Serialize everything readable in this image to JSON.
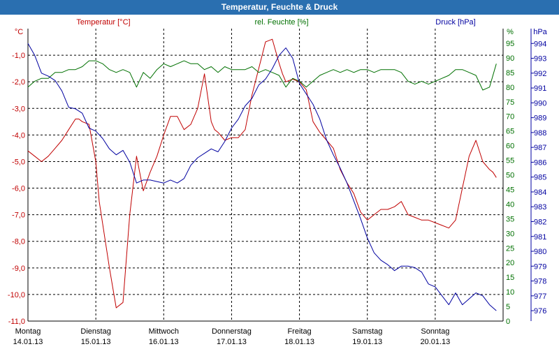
{
  "window": {
    "title": "Temperatur, Feuchte & Druck"
  },
  "legend": {
    "temperature": "Temperatur [°C]",
    "humidity": "rel. Feuchte [%]",
    "pressure": "Druck [hPa]"
  },
  "axes": {
    "left_unit": "°C",
    "right1_unit": "%",
    "right2_unit": "hPa",
    "left_ticks": [
      "-1,0",
      "-2,0",
      "-3,0",
      "-4,0",
      "-5,0",
      "-6,0",
      "-7,0",
      "-8,0",
      "-9,0",
      "-10,0",
      "-11,0"
    ],
    "hum_ticks": [
      "95",
      "90",
      "85",
      "80",
      "75",
      "70",
      "65",
      "60",
      "55",
      "50",
      "45",
      "40",
      "35",
      "30",
      "25",
      "20",
      "15",
      "10",
      "5",
      "0"
    ],
    "pres_ticks": [
      "994",
      "993",
      "992",
      "991",
      "990",
      "989",
      "988",
      "987",
      "986",
      "985",
      "984",
      "983",
      "982",
      "981",
      "980",
      "979",
      "978",
      "977",
      "976"
    ],
    "day_labels": [
      {
        "day": "Montag",
        "date": "14.01.13"
      },
      {
        "day": "Dienstag",
        "date": "15.01.13"
      },
      {
        "day": "Mittwoch",
        "date": "16.01.13"
      },
      {
        "day": "Donnerstag",
        "date": "17.01.13"
      },
      {
        "day": "Freitag",
        "date": "18.01.13"
      },
      {
        "day": "Samstag",
        "date": "19.01.13"
      },
      {
        "day": "Sonntag",
        "date": "20.01.13"
      }
    ]
  },
  "colors": {
    "temperature": "#c00000",
    "humidity": "#007000",
    "pressure": "#0000a0",
    "grid": "#000000",
    "title_bg": "#2a6fb0"
  },
  "chart_data": {
    "type": "line",
    "title": "Temperatur, Feuchte & Druck",
    "x_unit": "days since 14.01.13 00:00",
    "xlim": [
      0,
      7
    ],
    "grid": true,
    "series": [
      {
        "name": "Temperatur [°C]",
        "axis": "left",
        "ylim": [
          -11.0,
          0.0
        ],
        "x": [
          0,
          0.1,
          0.2,
          0.3,
          0.4,
          0.5,
          0.6,
          0.7,
          0.75,
          0.8,
          0.9,
          1.0,
          1.05,
          1.2,
          1.3,
          1.4,
          1.5,
          1.6,
          1.7,
          1.8,
          1.9,
          2.0,
          2.1,
          2.2,
          2.3,
          2.4,
          2.5,
          2.6,
          2.7,
          2.75,
          2.8,
          2.9,
          3.0,
          3.1,
          3.2,
          3.3,
          3.4,
          3.5,
          3.6,
          3.7,
          3.75,
          3.8,
          3.9,
          4.0,
          4.1,
          4.2,
          4.3,
          4.4,
          4.5,
          4.6,
          4.7,
          4.8,
          4.9,
          5.0,
          5.1,
          5.2,
          5.3,
          5.4,
          5.5,
          5.6,
          5.7,
          5.8,
          5.9,
          6.0,
          6.1,
          6.2,
          6.3,
          6.4,
          6.5,
          6.6,
          6.7,
          6.8,
          6.85,
          6.9
        ],
        "values": [
          -4.6,
          -4.8,
          -5.0,
          -4.8,
          -4.5,
          -4.2,
          -3.8,
          -3.4,
          -3.4,
          -3.5,
          -3.6,
          -5.0,
          -6.5,
          -9.0,
          -10.5,
          -10.3,
          -7.0,
          -4.8,
          -6.1,
          -5.4,
          -4.8,
          -4.0,
          -3.3,
          -3.3,
          -3.8,
          -3.6,
          -3.0,
          -1.7,
          -3.5,
          -3.8,
          -3.9,
          -4.2,
          -4.1,
          -4.1,
          -3.8,
          -2.5,
          -1.5,
          -0.5,
          -0.4,
          -1.3,
          -1.7,
          -2.0,
          -1.9,
          -2.0,
          -2.3,
          -3.5,
          -3.9,
          -4.2,
          -4.5,
          -5.3,
          -5.8,
          -6.2,
          -6.9,
          -7.2,
          -7.0,
          -6.8,
          -6.8,
          -6.7,
          -6.5,
          -7.0,
          -7.1,
          -7.2,
          -7.2,
          -7.3,
          -7.4,
          -7.5,
          -7.2,
          -6.0,
          -4.8,
          -4.2,
          -5.0,
          -5.3,
          -5.4,
          -5.6
        ]
      },
      {
        "name": "rel. Feuchte [%]",
        "axis": "right1",
        "ylim": [
          0,
          100
        ],
        "x": [
          0,
          0.1,
          0.2,
          0.3,
          0.4,
          0.5,
          0.6,
          0.7,
          0.8,
          0.9,
          1.0,
          1.1,
          1.2,
          1.3,
          1.4,
          1.5,
          1.6,
          1.7,
          1.8,
          1.9,
          2.0,
          2.1,
          2.2,
          2.3,
          2.4,
          2.5,
          2.6,
          2.7,
          2.8,
          2.9,
          3.0,
          3.1,
          3.2,
          3.3,
          3.4,
          3.5,
          3.6,
          3.7,
          3.8,
          3.9,
          4.0,
          4.1,
          4.2,
          4.3,
          4.4,
          4.5,
          4.6,
          4.7,
          4.8,
          4.9,
          5.0,
          5.1,
          5.2,
          5.3,
          5.4,
          5.5,
          5.6,
          5.7,
          5.8,
          5.9,
          6.0,
          6.1,
          6.2,
          6.3,
          6.4,
          6.5,
          6.6,
          6.7,
          6.8,
          6.9
        ],
        "values": [
          80,
          82,
          83,
          83,
          85,
          85,
          86,
          86,
          87,
          89,
          89,
          88,
          86,
          85,
          86,
          85,
          80,
          85,
          83,
          86,
          88,
          87,
          88,
          89,
          88,
          88,
          86,
          87,
          85,
          87,
          86,
          86,
          86,
          87,
          85,
          86,
          85,
          84,
          80,
          83,
          82,
          80,
          82,
          84,
          85,
          86,
          85,
          86,
          85,
          86,
          86,
          85,
          86,
          86,
          86,
          85,
          82,
          81,
          82,
          81,
          82,
          83,
          84,
          86,
          86,
          85,
          84,
          79,
          80,
          88
        ]
      },
      {
        "name": "Druck [hPa]",
        "axis": "right2",
        "ylim": [
          975.3,
          995.0
        ],
        "x": [
          0,
          0.1,
          0.2,
          0.3,
          0.4,
          0.5,
          0.6,
          0.7,
          0.8,
          0.9,
          1.0,
          1.1,
          1.2,
          1.3,
          1.4,
          1.5,
          1.6,
          1.7,
          1.8,
          1.9,
          2.0,
          2.1,
          2.2,
          2.3,
          2.4,
          2.5,
          2.6,
          2.7,
          2.8,
          2.9,
          3.0,
          3.1,
          3.2,
          3.3,
          3.4,
          3.5,
          3.6,
          3.7,
          3.8,
          3.9,
          4.0,
          4.1,
          4.2,
          4.3,
          4.4,
          4.5,
          4.6,
          4.7,
          4.8,
          4.9,
          5.0,
          5.1,
          5.2,
          5.3,
          5.4,
          5.5,
          5.6,
          5.7,
          5.8,
          5.9,
          6.0,
          6.1,
          6.2,
          6.3,
          6.4,
          6.5,
          6.6,
          6.7,
          6.8,
          6.9
        ],
        "values": [
          994.0,
          993.2,
          992.0,
          991.8,
          991.5,
          990.8,
          989.7,
          989.6,
          989.3,
          988.3,
          988.1,
          987.6,
          986.9,
          986.5,
          986.8,
          986.0,
          984.6,
          984.8,
          984.8,
          984.7,
          984.6,
          984.8,
          984.6,
          984.9,
          985.8,
          986.3,
          986.6,
          986.9,
          986.7,
          987.4,
          988.3,
          988.9,
          989.8,
          990.3,
          991.2,
          991.6,
          992.3,
          993.2,
          993.7,
          993.0,
          991.3,
          990.6,
          989.9,
          988.9,
          987.5,
          986.5,
          985.6,
          984.6,
          983.4,
          982.2,
          980.9,
          979.9,
          979.4,
          979.1,
          978.7,
          979.0,
          979.0,
          978.9,
          978.6,
          977.8,
          977.6,
          977.0,
          976.4,
          977.2,
          976.4,
          976.8,
          977.2,
          977.0,
          976.4,
          976.0
        ]
      }
    ]
  }
}
